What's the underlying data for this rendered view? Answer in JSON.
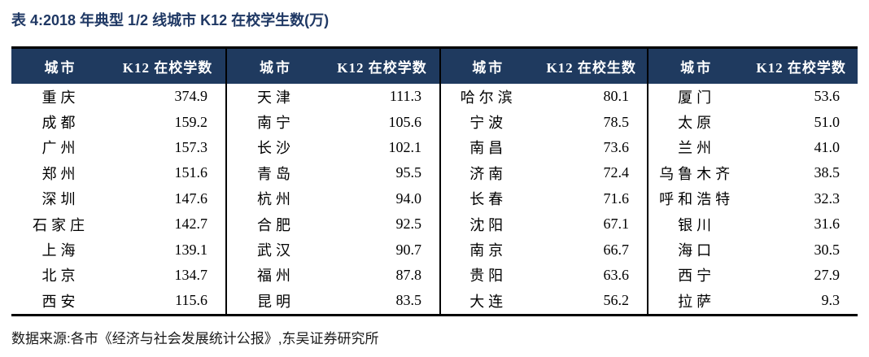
{
  "page": {
    "title": "表 4:2018 年典型 1/2 线城市 K12 在校学生数(万)",
    "source_note": "数据来源:各市《经济与社会发展统计公报》,东吴证券研究所"
  },
  "colors": {
    "title_text": "#1F3864",
    "header_background": "#1F3A5F",
    "header_text": "#FFFFFF",
    "table_border": "#000000",
    "body_text": "#000000"
  },
  "table": {
    "groups": [
      {
        "city_header": "城市",
        "value_header": "K12 在校学数",
        "rows": [
          {
            "city": "重庆",
            "value": "374.9"
          },
          {
            "city": "成都",
            "value": "159.2"
          },
          {
            "city": "广州",
            "value": "157.3"
          },
          {
            "city": "郑州",
            "value": "151.6"
          },
          {
            "city": "深圳",
            "value": "147.6"
          },
          {
            "city": "石家庄",
            "value": "142.7"
          },
          {
            "city": "上海",
            "value": "139.1"
          },
          {
            "city": "北京",
            "value": "134.7"
          },
          {
            "city": "西安",
            "value": "115.6"
          }
        ]
      },
      {
        "city_header": "城市",
        "value_header": "K12 在校学数",
        "rows": [
          {
            "city": "天津",
            "value": "111.3"
          },
          {
            "city": "南宁",
            "value": "105.6"
          },
          {
            "city": "长沙",
            "value": "102.1"
          },
          {
            "city": "青岛",
            "value": "95.5"
          },
          {
            "city": "杭州",
            "value": "94.0"
          },
          {
            "city": "合肥",
            "value": "92.5"
          },
          {
            "city": "武汉",
            "value": "90.7"
          },
          {
            "city": "福州",
            "value": "87.8"
          },
          {
            "city": "昆明",
            "value": "83.5"
          }
        ]
      },
      {
        "city_header": "城市",
        "value_header": "K12 在校生数",
        "rows": [
          {
            "city": "哈尔滨",
            "value": "80.1"
          },
          {
            "city": "宁波",
            "value": "78.5"
          },
          {
            "city": "南昌",
            "value": "73.6"
          },
          {
            "city": "济南",
            "value": "72.4"
          },
          {
            "city": "长春",
            "value": "71.6"
          },
          {
            "city": "沈阳",
            "value": "67.1"
          },
          {
            "city": "南京",
            "value": "66.7"
          },
          {
            "city": "贵阳",
            "value": "63.6"
          },
          {
            "city": "大连",
            "value": "56.2"
          }
        ]
      },
      {
        "city_header": "城市",
        "value_header": "K12 在校学数",
        "rows": [
          {
            "city": "厦门",
            "value": "53.6"
          },
          {
            "city": "太原",
            "value": "51.0"
          },
          {
            "city": "兰州",
            "value": "41.0"
          },
          {
            "city": "乌鲁木齐",
            "value": "38.5"
          },
          {
            "city": "呼和浩特",
            "value": "32.3"
          },
          {
            "city": "银川",
            "value": "31.6"
          },
          {
            "city": "海口",
            "value": "30.5"
          },
          {
            "city": "西宁",
            "value": "27.9"
          },
          {
            "city": "拉萨",
            "value": "9.3"
          }
        ]
      }
    ]
  }
}
